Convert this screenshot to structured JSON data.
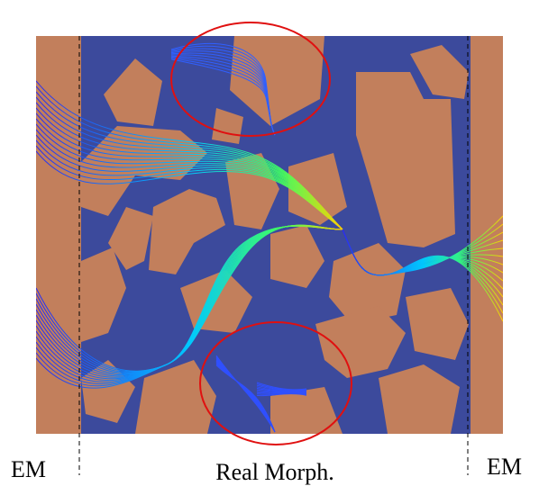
{
  "labels": {
    "left": "EM",
    "center": "Real Morph.",
    "right": "EM"
  }
}
